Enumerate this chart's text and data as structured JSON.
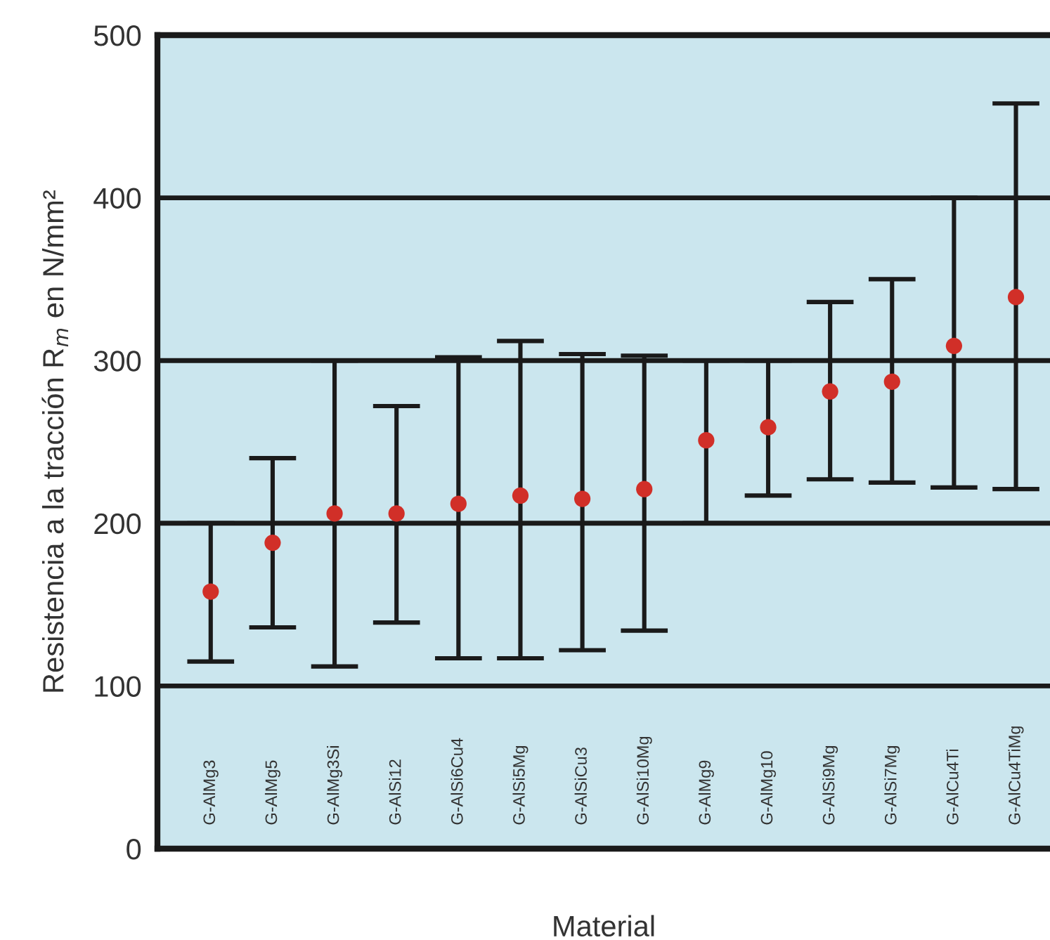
{
  "chart_data": {
    "type": "scatter",
    "ylabel": "Resistencia a la tracción R$_{m}$ en N/mm²",
    "xlabel": "Material",
    "categories": [
      "G-AlMg3",
      "G-AlMg5",
      "G-AlMg3Si",
      "G-AlSi12",
      "G-AlSi6Cu4",
      "G-AlSi5Mg",
      "G-AlSiCu3",
      "G-AlSi10Mg",
      "G-AlMg9",
      "G-AlMg10",
      "G-AlSi9Mg",
      "G-AlSi7Mg",
      "G-AlCu4Ti",
      "G-AlCu4TiMg"
    ],
    "series": [
      {
        "color": "#d12f28",
        "values": [
          158,
          188,
          206,
          206,
          212,
          217,
          215,
          221,
          251,
          259,
          281,
          287,
          309,
          339
        ],
        "errors": [
          [
            115,
            200
          ],
          [
            136,
            240
          ],
          [
            112,
            300
          ],
          [
            139,
            272
          ],
          [
            117,
            302
          ],
          [
            117,
            312
          ],
          [
            122,
            304
          ],
          [
            134,
            303
          ],
          [
            200,
            300
          ],
          [
            217,
            300
          ],
          [
            227,
            336
          ],
          [
            225,
            350
          ],
          [
            222,
            400
          ],
          [
            221,
            458
          ]
        ]
      }
    ],
    "ylim": [
      0,
      500
    ],
    "yticks": [
      0,
      100,
      200,
      300,
      400,
      500
    ],
    "grid": "y",
    "marker": "circle"
  }
}
